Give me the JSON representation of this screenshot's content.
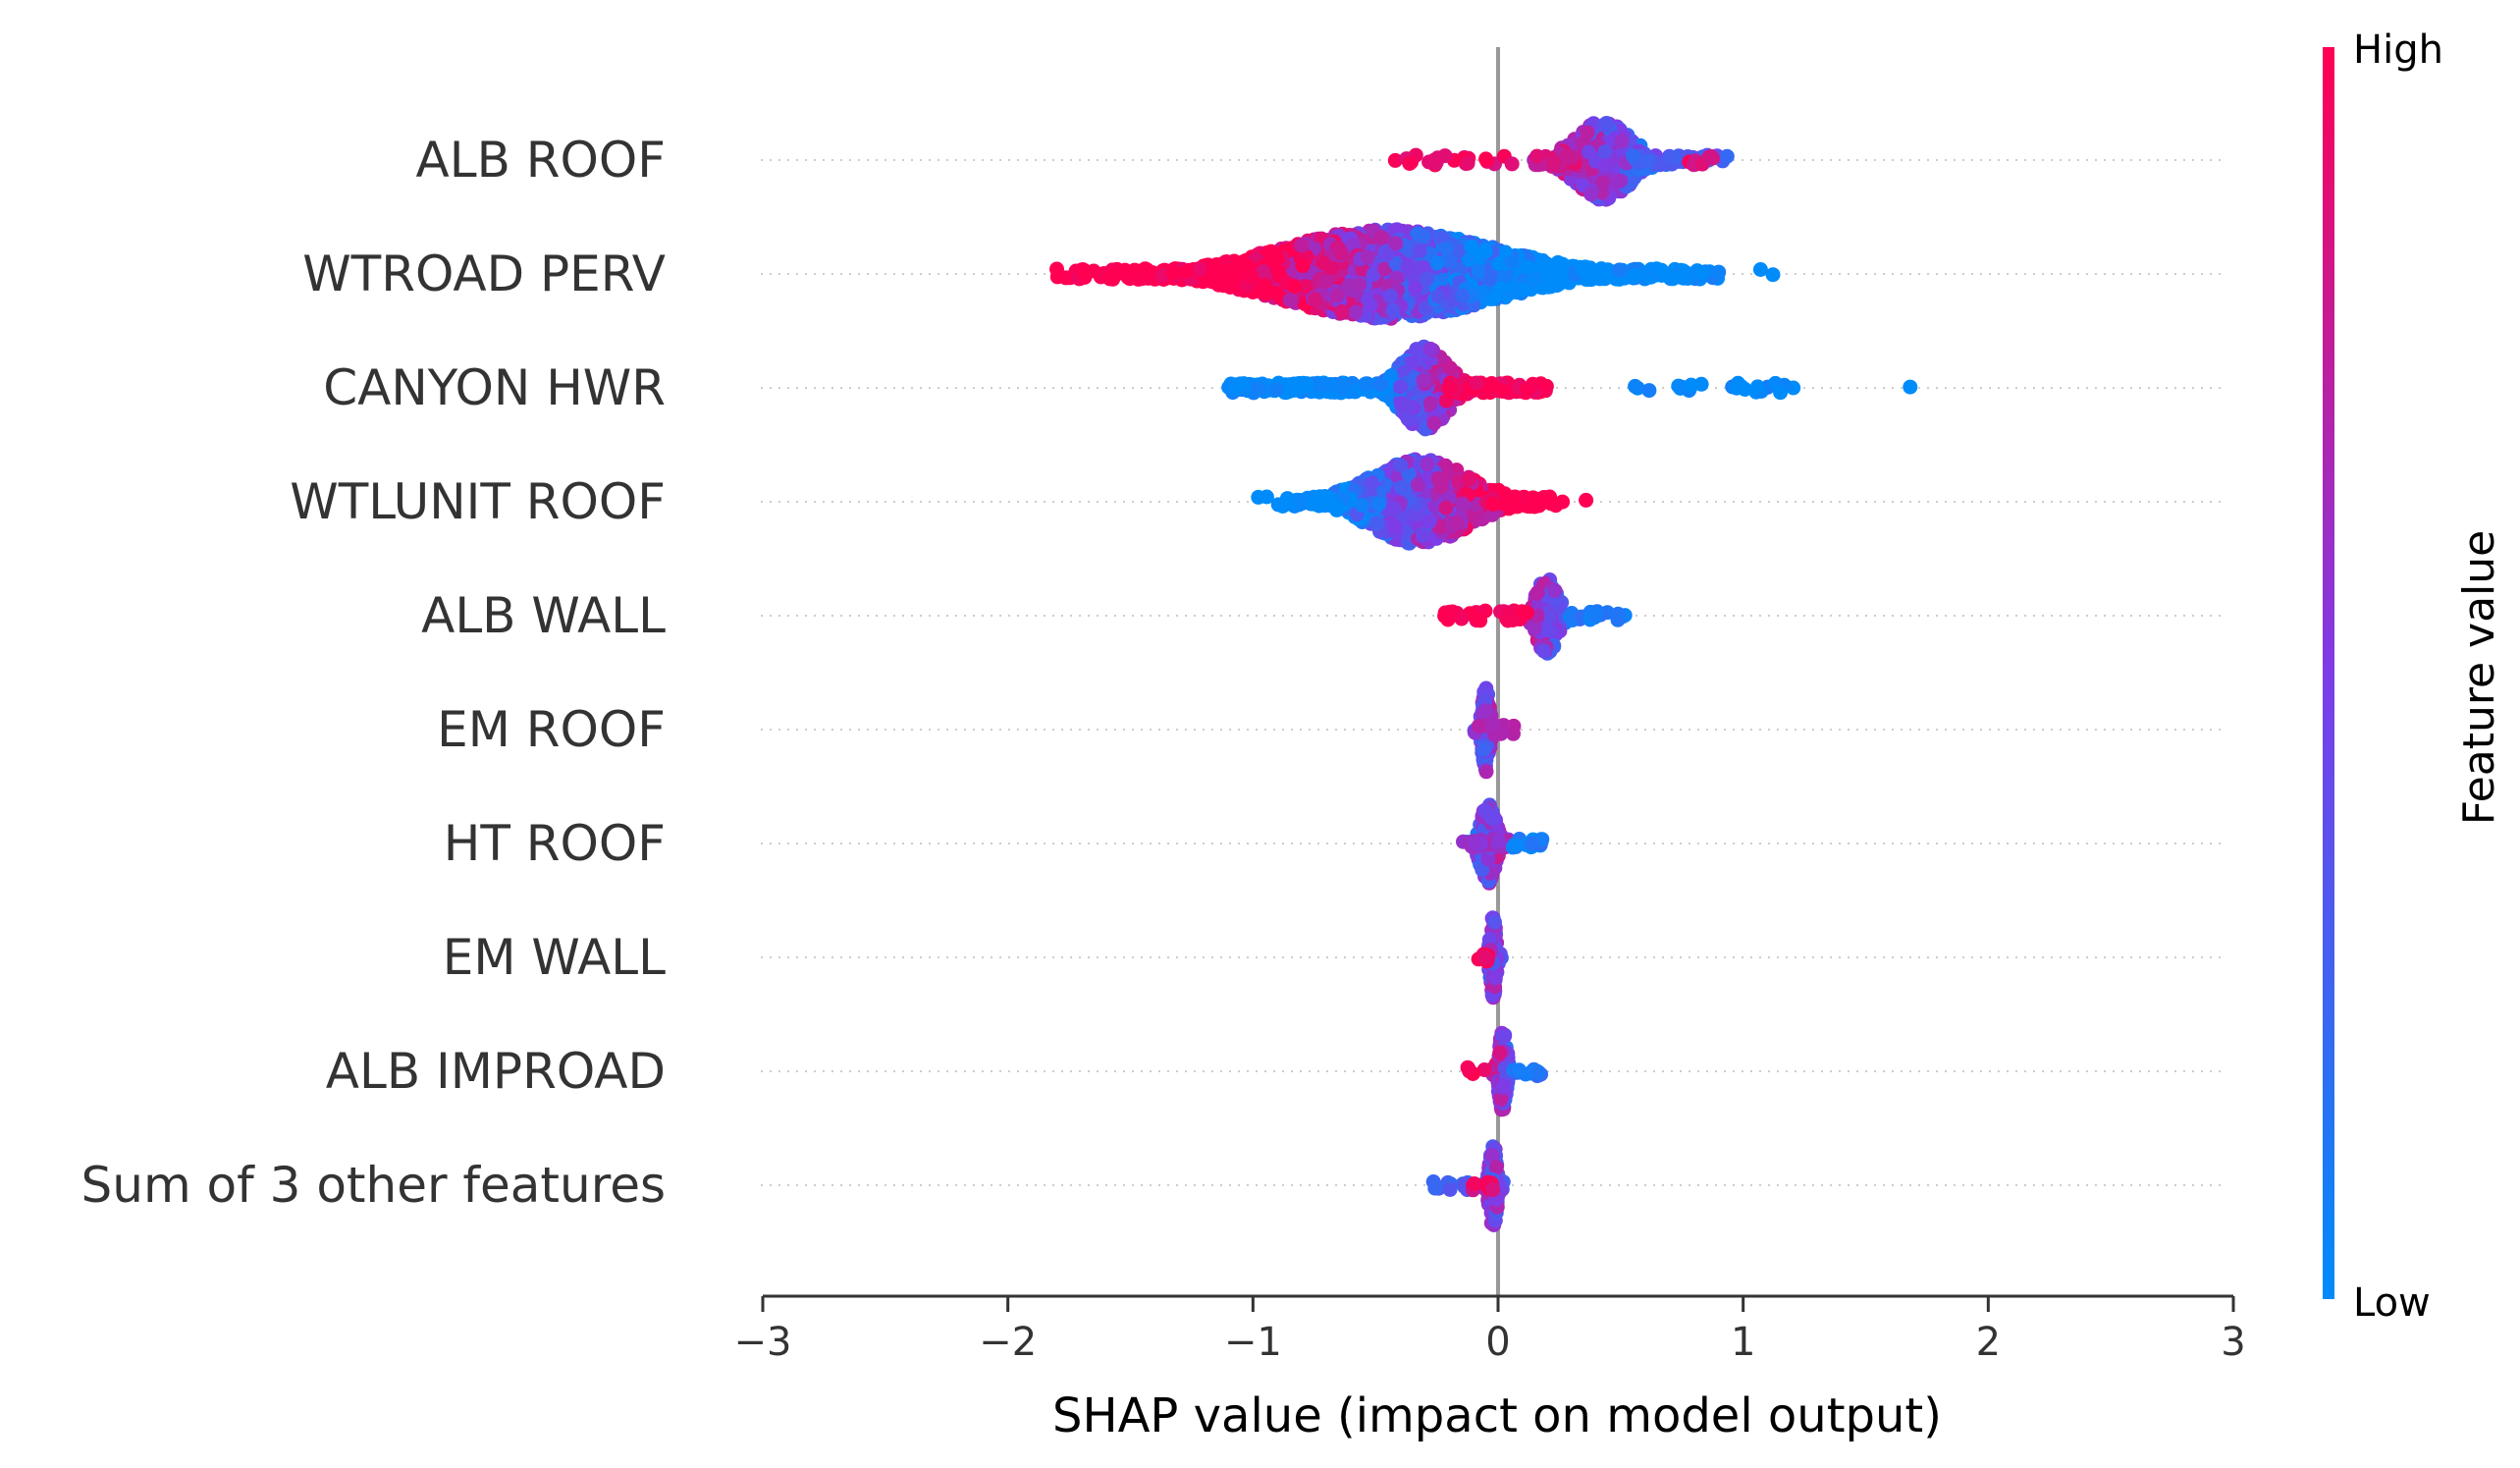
{
  "chart_data": {
    "type": "scatter",
    "subtype": "shap-beeswarm",
    "xlabel": "SHAP value (impact on model output)",
    "xlim": [
      -3,
      3
    ],
    "xticks": [
      -3,
      -2,
      -1,
      0,
      1,
      2,
      3
    ],
    "xtick_labels": [
      "−3",
      "−2",
      "−1",
      "0",
      "1",
      "2",
      "3"
    ],
    "colorbar": {
      "title": "Feature value",
      "high_label": "High",
      "low_label": "Low",
      "low_color": "#008bfb",
      "high_color": "#ff0052"
    },
    "zero_line_color": "#999999",
    "features": [
      {
        "name": "ALB ROOF",
        "dense": {
          "center": 0.43,
          "spread": 0.11,
          "height": 0.85,
          "count": 380,
          "corr": -0.3
        },
        "groups": [
          {
            "from": -0.42,
            "to": 0.06,
            "count": 22,
            "color": 0.95
          },
          {
            "from": 0.15,
            "to": 0.32,
            "count": 22,
            "color": 0.8
          },
          {
            "from": 0.55,
            "to": 0.94,
            "count": 36,
            "color": 0.3
          },
          {
            "from": 0.78,
            "to": 0.88,
            "count": 8,
            "color": 0.9
          }
        ]
      },
      {
        "name": "WTROAD PERV",
        "dense": {
          "center": -0.45,
          "spread": 0.42,
          "height": 0.95,
          "count": 2300,
          "corr": -0.95
        },
        "groups": [
          {
            "from": -1.75,
            "to": -1.15,
            "count": 45,
            "color": 1.0
          },
          {
            "from": 0.25,
            "to": 0.9,
            "count": 60,
            "color": 0.0
          },
          {
            "from": 1.1,
            "to": 1.13,
            "count": 1,
            "color": 0.0
          }
        ]
      },
      {
        "name": "CANYON HWR",
        "dense": {
          "center": -0.3,
          "spread": 0.09,
          "height": 0.9,
          "count": 320,
          "corr": 0.5
        },
        "groups": [
          {
            "from": -1.1,
            "to": -0.45,
            "count": 140,
            "color": 0.0
          },
          {
            "from": -0.2,
            "to": 0.2,
            "count": 90,
            "color": 1.0
          },
          {
            "from": 0.55,
            "to": 0.85,
            "count": 10,
            "color": 0.0
          },
          {
            "from": 0.9,
            "to": 1.22,
            "count": 14,
            "color": 0.0
          },
          {
            "from": 1.67,
            "to": 1.69,
            "count": 1,
            "color": 0.0
          }
        ]
      },
      {
        "name": "WTLUNIT ROOF",
        "dense": {
          "center": -0.32,
          "spread": 0.2,
          "height": 0.9,
          "count": 900,
          "corr": 0.6
        },
        "groups": [
          {
            "from": -0.88,
            "to": -0.6,
            "count": 25,
            "color": 0.0
          },
          {
            "from": -0.05,
            "to": 0.08,
            "count": 14,
            "color": 1.0
          },
          {
            "from": 0.13,
            "to": 0.27,
            "count": 3,
            "color": 1.0
          }
        ]
      },
      {
        "name": "ALB WALL",
        "dense": {
          "center": 0.2,
          "spread": 0.04,
          "height": 0.85,
          "count": 160,
          "corr": -0.3
        },
        "groups": [
          {
            "from": -0.22,
            "to": -0.05,
            "count": 14,
            "color": 1.0
          },
          {
            "from": 0.0,
            "to": 0.14,
            "count": 20,
            "color": 1.0
          },
          {
            "from": 0.28,
            "to": 0.52,
            "count": 22,
            "color": 0.15
          }
        ]
      },
      {
        "name": "EM ROOF",
        "dense": {
          "center": -0.05,
          "spread": 0.015,
          "height": 0.9,
          "count": 130,
          "corr": 0.2
        },
        "groups": [
          {
            "from": -0.1,
            "to": 0.07,
            "count": 14,
            "color": 0.65
          }
        ]
      },
      {
        "name": "HT ROOF",
        "dense": {
          "center": -0.04,
          "spread": 0.03,
          "height": 0.85,
          "count": 160,
          "corr": 0.2
        },
        "groups": [
          {
            "from": -0.15,
            "to": 0.05,
            "count": 20,
            "color": 0.6
          },
          {
            "from": 0.05,
            "to": 0.22,
            "count": 16,
            "color": 0.1
          }
        ]
      },
      {
        "name": "EM WALL",
        "dense": {
          "center": -0.02,
          "spread": 0.012,
          "height": 0.9,
          "count": 110,
          "corr": 0.0
        },
        "groups": [
          {
            "from": -0.1,
            "to": -0.04,
            "count": 6,
            "color": 1.0
          }
        ]
      },
      {
        "name": "ALB IMPROAD",
        "dense": {
          "center": 0.02,
          "spread": 0.015,
          "height": 0.9,
          "count": 120,
          "corr": -0.3
        },
        "groups": [
          {
            "from": -0.14,
            "to": -0.05,
            "count": 5,
            "color": 1.0
          },
          {
            "from": 0.05,
            "to": 0.2,
            "count": 12,
            "color": 0.15
          }
        ]
      },
      {
        "name": "Sum of 3 other features",
        "dense": {
          "center": -0.02,
          "spread": 0.015,
          "height": 0.9,
          "count": 110,
          "corr": 0.0
        },
        "groups": [
          {
            "from": -0.27,
            "to": -0.1,
            "count": 14,
            "color": 0.3
          },
          {
            "from": -0.12,
            "to": -0.02,
            "count": 10,
            "color": 0.9
          }
        ]
      }
    ]
  }
}
